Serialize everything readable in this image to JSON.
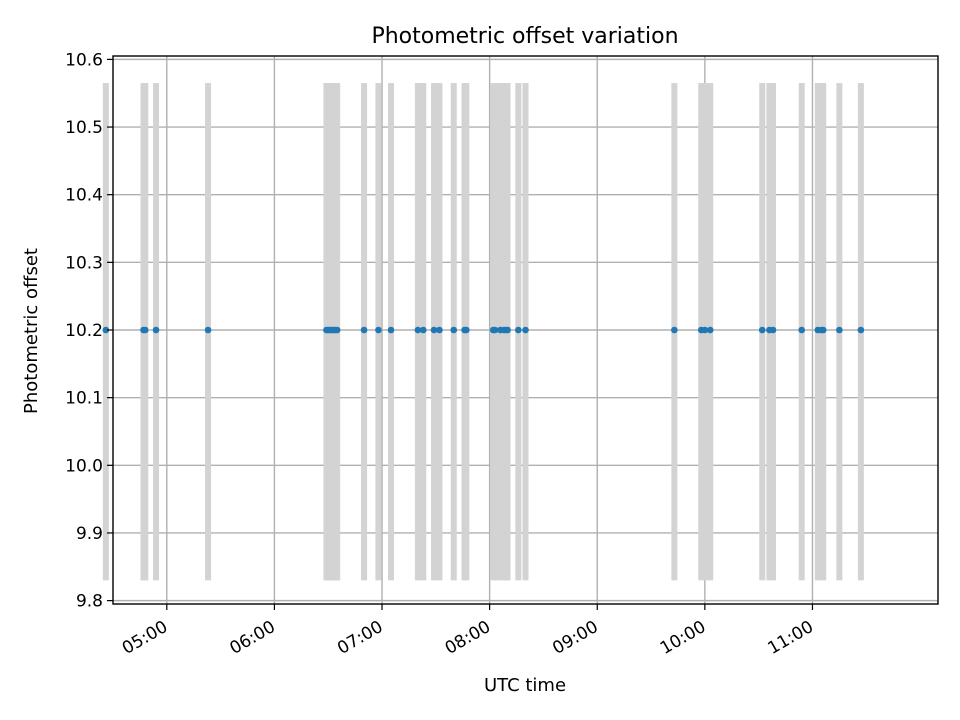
{
  "chart_data": {
    "type": "scatter",
    "title": "Photometric offset variation",
    "xlabel": "UTC time",
    "ylabel": "Photometric offset",
    "x_unit": "UTC time (HH:MM)",
    "xlim": [
      "04:30",
      "12:10"
    ],
    "ylim": [
      9.795,
      10.605
    ],
    "grid": true,
    "y_ticks": [
      "9.8",
      "9.9",
      "10.0",
      "10.1",
      "10.2",
      "10.3",
      "10.4",
      "10.5",
      "10.6"
    ],
    "x_ticks": [
      "05:00",
      "06:00",
      "07:00",
      "08:00",
      "09:00",
      "10:00",
      "11:00"
    ],
    "points": {
      "color": "#1f77b4",
      "x": [
        "04:26",
        "04:47",
        "04:48",
        "04:54",
        "05:23",
        "06:29",
        "06:30",
        "06:31",
        "06:32",
        "06:33",
        "06:34",
        "06:35",
        "06:50",
        "06:58",
        "07:05",
        "07:20",
        "07:23",
        "07:29",
        "07:32",
        "07:40",
        "07:46",
        "07:47",
        "08:02",
        "08:03",
        "08:06",
        "08:08",
        "08:09",
        "08:10",
        "08:16",
        "08:20",
        "09:43",
        "09:58",
        "10:00",
        "10:03",
        "10:32",
        "10:36",
        "10:38",
        "10:54",
        "11:03",
        "11:05",
        "11:06",
        "11:15",
        "11:27"
      ],
      "y": [
        10.2,
        10.2,
        10.2,
        10.2,
        10.2,
        10.2,
        10.2,
        10.2,
        10.2,
        10.2,
        10.2,
        10.2,
        10.2,
        10.2,
        10.2,
        10.2,
        10.2,
        10.2,
        10.2,
        10.2,
        10.2,
        10.2,
        10.2,
        10.2,
        10.2,
        10.2,
        10.2,
        10.2,
        10.2,
        10.2,
        10.2,
        10.2,
        10.2,
        10.2,
        10.2,
        10.2,
        10.2,
        10.2,
        10.2,
        10.2,
        10.2,
        10.2,
        10.2
      ]
    },
    "vertical_bands": {
      "color": "#d3d3d3",
      "y_range": [
        9.83,
        10.565
      ]
    }
  }
}
